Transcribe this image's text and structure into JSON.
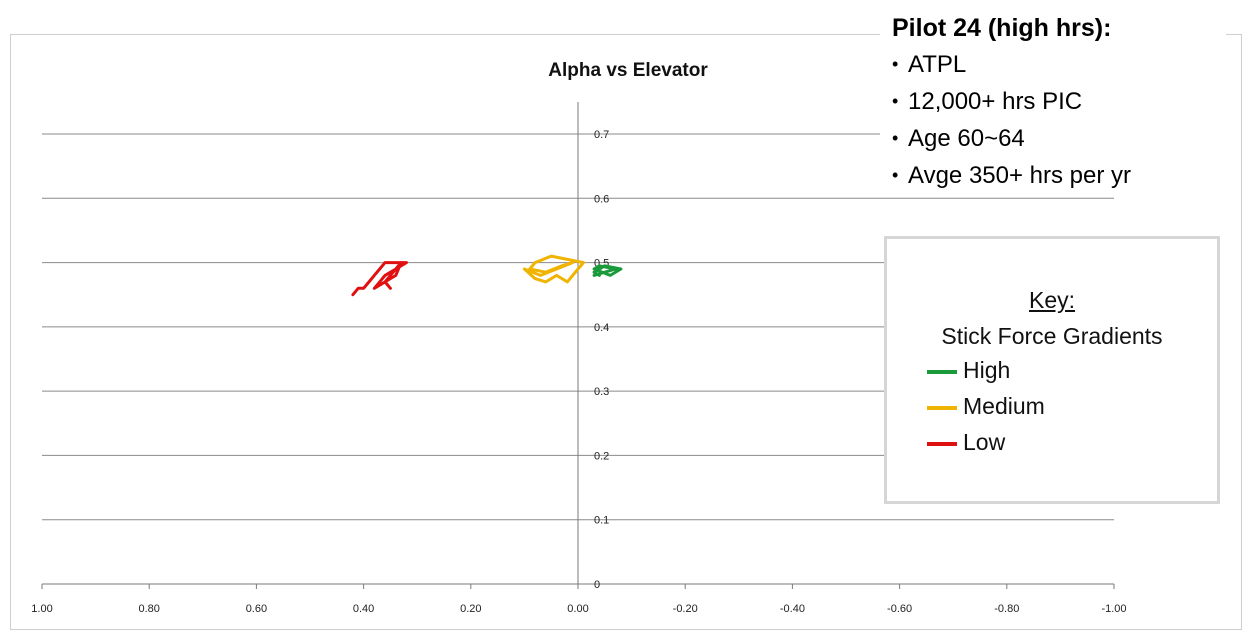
{
  "chart_data": {
    "type": "line",
    "title": "Alpha vs Elevator",
    "xlabel": "",
    "ylabel": "",
    "xlim": [
      1.0,
      -1.0
    ],
    "ylim": [
      0,
      0.7
    ],
    "x_ticks": [
      "1.00",
      "0.80",
      "0.60",
      "0.40",
      "0.20",
      "0.00",
      "-0.20",
      "-0.40",
      "-0.60",
      "-0.80",
      "-1.00"
    ],
    "x_tick_values": [
      1.0,
      0.8,
      0.6,
      0.4,
      0.2,
      0.0,
      -0.2,
      -0.4,
      -0.6,
      -0.8,
      -1.0
    ],
    "y_ticks": [
      "0",
      "0.1",
      "0.2",
      "0.3",
      "0.4",
      "0.5",
      "0.6",
      "0.7"
    ],
    "y_tick_values": [
      0,
      0.1,
      0.2,
      0.3,
      0.4,
      0.5,
      0.6,
      0.7
    ],
    "grid": true,
    "series": [
      {
        "name": "High",
        "color": "#1a9a3a",
        "x": [
          -0.03,
          -0.05,
          -0.07,
          -0.04,
          -0.03,
          -0.06,
          -0.08,
          -0.05,
          -0.03,
          -0.04
        ],
        "y": [
          0.48,
          0.485,
          0.49,
          0.495,
          0.49,
          0.48,
          0.49,
          0.495,
          0.485,
          0.48
        ]
      },
      {
        "name": "Medium",
        "color": "#f0b400",
        "x": [
          0.1,
          0.08,
          0.06,
          0.04,
          0.02,
          0.0,
          -0.01,
          0.02,
          0.05,
          0.08,
          0.09,
          0.06,
          0.03,
          0.01,
          0.04,
          0.07,
          0.1
        ],
        "y": [
          0.49,
          0.475,
          0.47,
          0.48,
          0.47,
          0.49,
          0.5,
          0.505,
          0.51,
          0.5,
          0.49,
          0.485,
          0.495,
          0.5,
          0.49,
          0.48,
          0.49
        ]
      },
      {
        "name": "Low",
        "color": "#e01010",
        "x": [
          0.42,
          0.41,
          0.4,
          0.39,
          0.38,
          0.37,
          0.36,
          0.35,
          0.34,
          0.33,
          0.32,
          0.34,
          0.36,
          0.37,
          0.38,
          0.37,
          0.36,
          0.35,
          0.34,
          0.33,
          0.34,
          0.36,
          0.35
        ],
        "y": [
          0.45,
          0.46,
          0.46,
          0.47,
          0.48,
          0.49,
          0.5,
          0.5,
          0.5,
          0.5,
          0.5,
          0.49,
          0.48,
          0.47,
          0.46,
          0.465,
          0.47,
          0.48,
          0.49,
          0.5,
          0.48,
          0.47,
          0.46
        ]
      }
    ]
  },
  "pilot_info": {
    "title": "Pilot 24 (high hrs):",
    "bullet": "•",
    "lines": [
      "ATPL",
      "12,000+ hrs PIC",
      "Age 60~64",
      "Avge 350+ hrs per yr"
    ]
  },
  "key": {
    "title": "Key:",
    "subtitle": "Stick Force Gradients",
    "items": [
      {
        "label": "High",
        "color": "#1a9a3a"
      },
      {
        "label": "Medium",
        "color": "#f0b400"
      },
      {
        "label": "Low",
        "color": "#e01010"
      }
    ]
  }
}
